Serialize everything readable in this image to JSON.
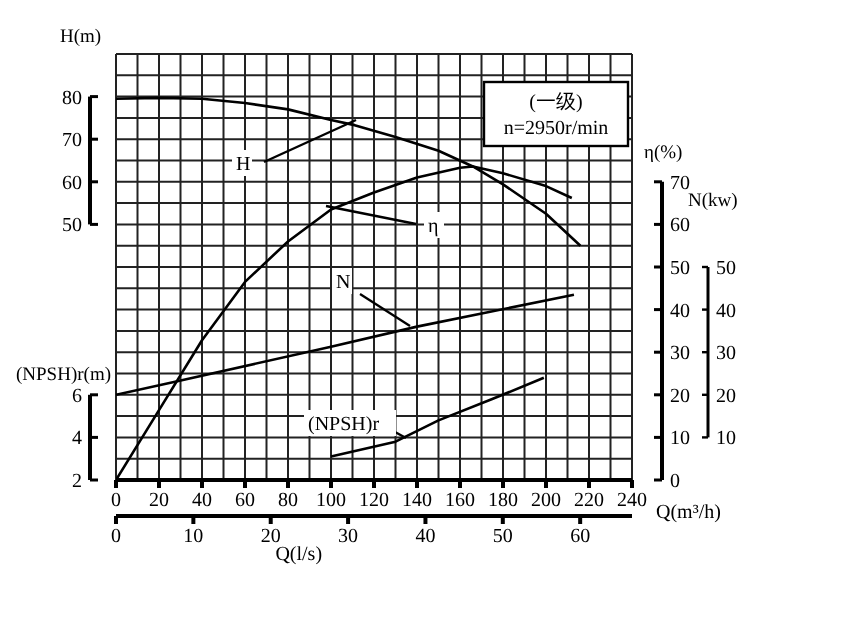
{
  "chart_data": {
    "type": "line",
    "xlabel": "Q(m³/h)",
    "x2label": "Q(l/s)",
    "ylabel": "H(m)",
    "y2label": "η(%)",
    "y3label": "(NPSH)r(m)",
    "xlim": [
      0,
      240
    ],
    "xticks": [
      0,
      20,
      40,
      60,
      80,
      100,
      120,
      140,
      160,
      180,
      200,
      220,
      240
    ],
    "x2lim": [
      0,
      66.7
    ],
    "x2ticks": [
      0,
      10,
      20,
      30,
      40,
      50,
      60
    ],
    "ylim": [
      -10,
      90
    ],
    "yticks": [
      50,
      60,
      70,
      80
    ],
    "y2lim": [
      0,
      100
    ],
    "y2ticks": [
      0,
      10,
      20,
      30,
      40,
      50,
      60,
      70
    ],
    "y3lim": [
      2,
      22
    ],
    "y3ticks": [
      2,
      4,
      6
    ],
    "grid": true,
    "marker": "none",
    "line_style": "solid",
    "annotations": [
      "(一级)",
      "n=2950r/min",
      "N(kw)",
      "10",
      "20",
      "30",
      "40",
      "50"
    ],
    "series": [
      {
        "name": "H",
        "color": "#000000",
        "axis": "y",
        "x": [
          0,
          20,
          40,
          60,
          80,
          100,
          111,
          130,
          150,
          166,
          180,
          200,
          216
        ],
        "values": [
          79.5,
          79.7,
          79.5,
          78.5,
          77,
          74.5,
          73.3,
          70.5,
          67.3,
          63.6,
          59.4,
          52.5,
          45
        ]
      },
      {
        "name": "η",
        "color": "#000000",
        "axis": "y2",
        "x": [
          0,
          20,
          40,
          60,
          80,
          100,
          120,
          140,
          160,
          166,
          180,
          200,
          212
        ],
        "values": [
          0,
          16.4,
          32.8,
          46.5,
          56,
          63.5,
          67.5,
          71,
          73.3,
          73.6,
          72,
          69,
          66.2
        ]
      },
      {
        "name": "N",
        "color": "#000000",
        "axis": "y2",
        "x": [
          0,
          28,
          100,
          140,
          213
        ],
        "values": [
          20,
          23.1,
          31.3,
          36,
          43.5
        ]
      },
      {
        "name": "(NPSH)r",
        "color": "#000000",
        "axis": "y3",
        "x": [
          100,
          130,
          150,
          175,
          199
        ],
        "values": [
          3.1,
          3.8,
          4.8,
          5.8,
          6.8
        ]
      }
    ]
  }
}
